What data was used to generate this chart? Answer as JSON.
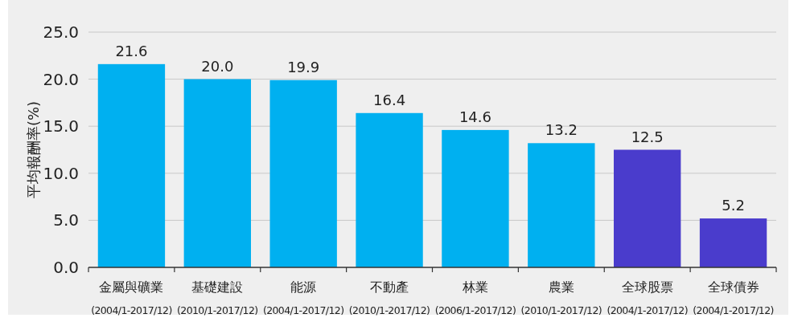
{
  "chart_data": {
    "type": "bar",
    "ylabel": "平均報酬率(%)",
    "categories": [
      "金屬與礦業\n(2004/1-2017/12)",
      "基礎建設\n(2010/1-2017/12)",
      "能源\n(2004/1-2017/12)",
      "不動產\n(2010/1-2017/12)",
      "林業\n(2006/1-2017/12)",
      "農業\n(2010/1-2017/12)",
      "全球股票\n(2004/1-2017/12)",
      "全球債券\n(2004/1-2017/12)"
    ],
    "values": [
      21.6,
      20.0,
      19.9,
      16.4,
      14.6,
      13.2,
      12.5,
      5.2
    ],
    "colors": [
      "#00b0f0",
      "#00b0f0",
      "#00b0f0",
      "#00b0f0",
      "#00b0f0",
      "#00b0f0",
      "#4a3ccc",
      "#4a3ccc"
    ],
    "value_labels": [
      "21.6",
      "20.0",
      "19.9",
      "16.4",
      "14.6",
      "13.2",
      "12.5",
      "5.2"
    ],
    "ylim": [
      0,
      25
    ],
    "yticks": [
      {
        "value": 0,
        "label": "0.0"
      },
      {
        "value": 5,
        "label": "5.0"
      },
      {
        "value": 10,
        "label": "10.0"
      },
      {
        "value": 15,
        "label": "15.0"
      },
      {
        "value": 20,
        "label": "20.0"
      },
      {
        "value": 25,
        "label": "25.0"
      }
    ],
    "grid": "y"
  }
}
